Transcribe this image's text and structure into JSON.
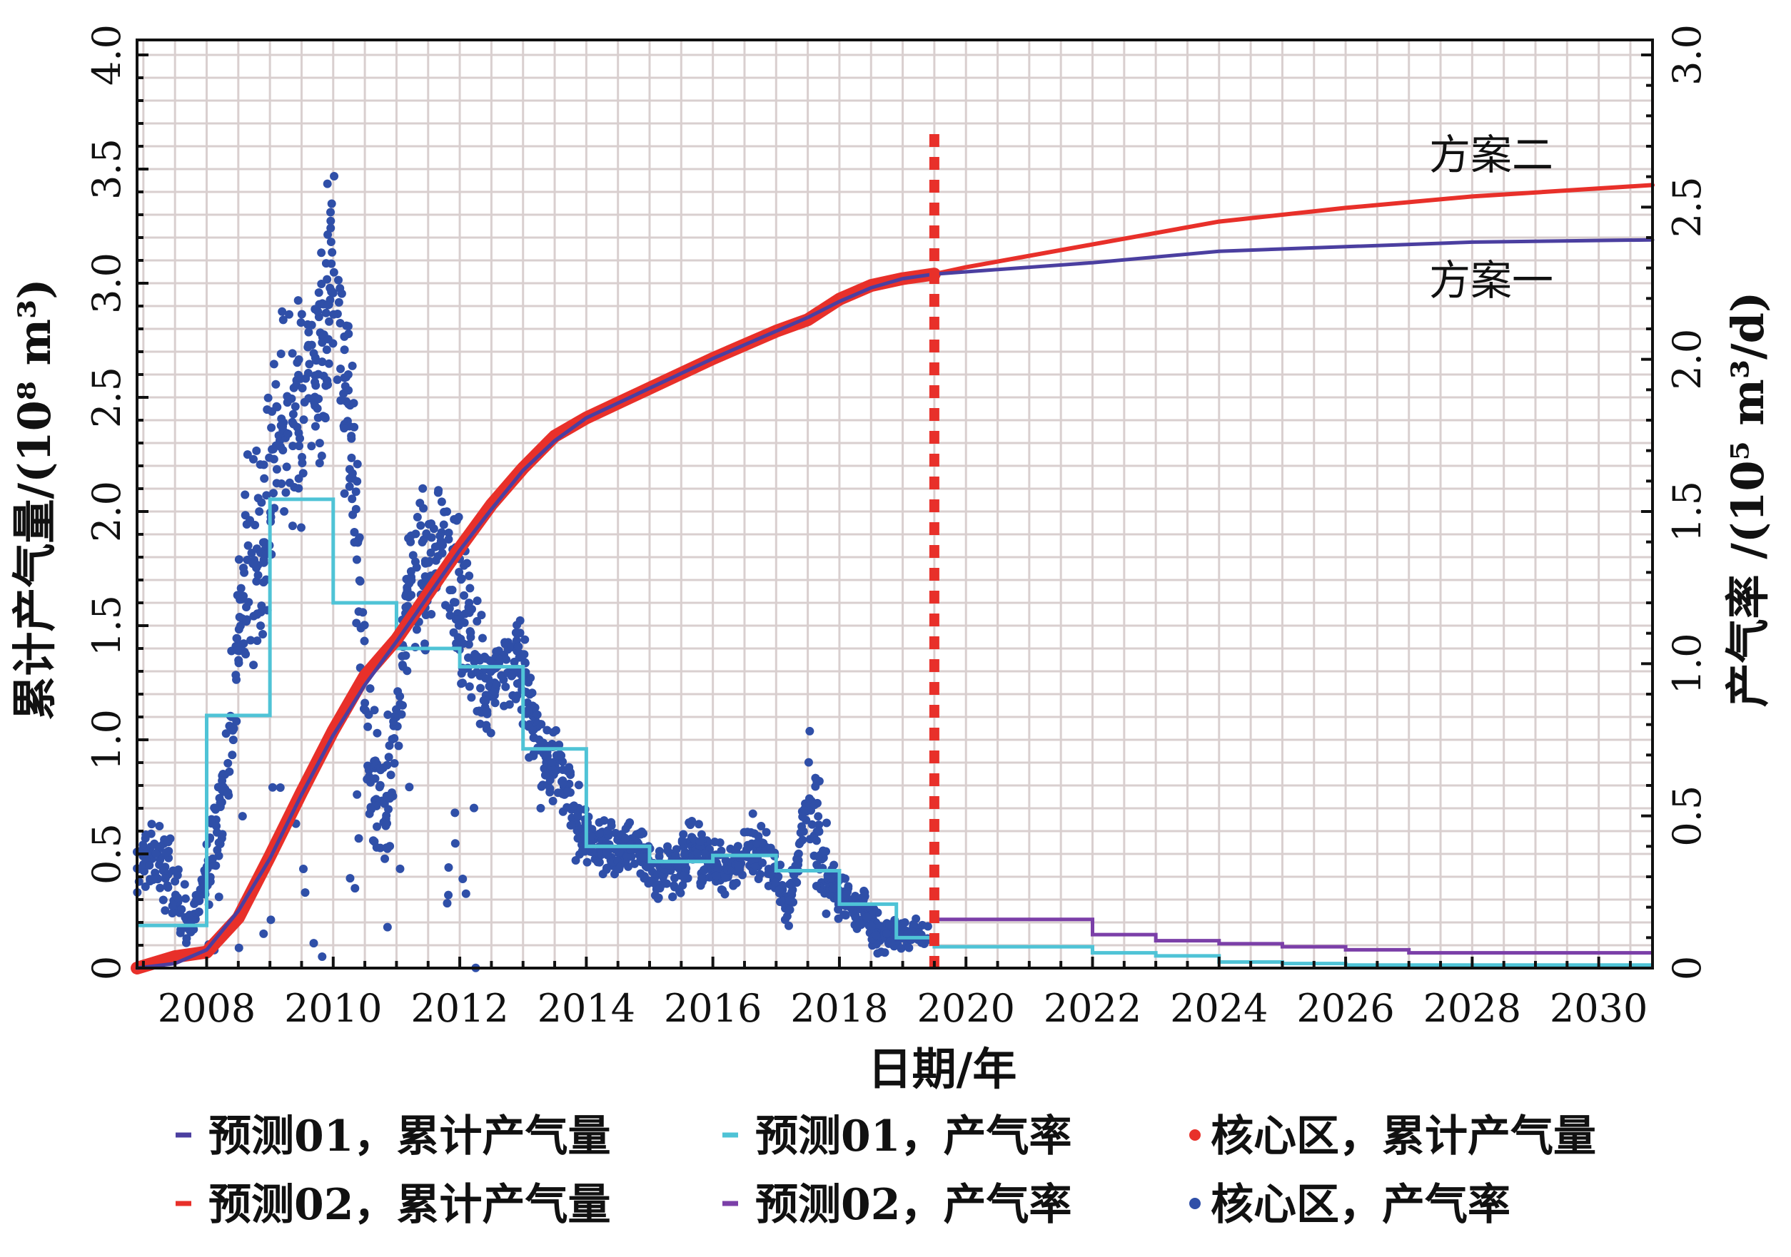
{
  "chart_data": {
    "type": "line",
    "xlabel": "日期/年",
    "ylabel_left": "累计产气量/(10⁸ m³)",
    "ylabel_right": "产气率 /(10⁵ m³/d)",
    "xlim": [
      2006.9,
      2030.85
    ],
    "ylim_left": [
      0,
      4.0
    ],
    "ylim_right": [
      0,
      3.0
    ],
    "x_ticks": [
      2008,
      2010,
      2012,
      2014,
      2016,
      2018,
      2020,
      2022,
      2024,
      2026,
      2028,
      2030
    ],
    "y_left_ticks": [
      "0",
      "0.5",
      "1.0",
      "1.5",
      "2.0",
      "2.5",
      "3.0",
      "3.5",
      "4.0"
    ],
    "y_right_ticks": [
      "0",
      "0.5",
      "1.0",
      "1.5",
      "2.0",
      "2.5",
      "3.0"
    ],
    "grid": true,
    "forecast_start_year": 2019.5,
    "annotations": [
      {
        "text": "方案二",
        "x": 2028.3,
        "y_left": 3.5
      },
      {
        "text": "方案一",
        "x": 2028.3,
        "y_left": 2.95
      }
    ],
    "series": [
      {
        "name": "预测01，累计产气量",
        "axis": "left",
        "kind": "line",
        "color": "#4b3fa0",
        "x": [
          2006.9,
          2007.5,
          2008,
          2008.5,
          2009,
          2009.5,
          2010,
          2010.5,
          2011,
          2011.5,
          2012,
          2012.5,
          2013,
          2013.5,
          2014,
          2015,
          2016,
          2017,
          2017.5,
          2018,
          2018.5,
          2019,
          2019.5,
          2020,
          2022,
          2024,
          2026,
          2028,
          2030.85
        ],
        "y": [
          0,
          0.02,
          0.08,
          0.25,
          0.48,
          0.76,
          1.02,
          1.24,
          1.43,
          1.63,
          1.83,
          2.01,
          2.18,
          2.31,
          2.41,
          2.54,
          2.67,
          2.79,
          2.85,
          2.92,
          2.98,
          3.02,
          3.04,
          3.05,
          3.09,
          3.14,
          3.16,
          3.18,
          3.19
        ]
      },
      {
        "name": "预测02，累计产气量",
        "axis": "left",
        "kind": "line",
        "color": "#e8302a",
        "x": [
          2019.5,
          2020,
          2022,
          2024,
          2026,
          2028,
          2030.85
        ],
        "y": [
          3.04,
          3.07,
          3.17,
          3.27,
          3.33,
          3.38,
          3.43
        ]
      },
      {
        "name": "预测01，产气率",
        "axis": "right",
        "kind": "step",
        "color": "#4fc3d6",
        "x": [
          2006.9,
          2008,
          2009,
          2010,
          2011,
          2012,
          2013,
          2014,
          2015,
          2016,
          2017,
          2018,
          2018.9,
          2019.5,
          2022,
          2023,
          2024,
          2025,
          2026,
          2030.85
        ],
        "y": [
          0.14,
          0.83,
          1.54,
          1.2,
          1.05,
          0.99,
          0.72,
          0.4,
          0.35,
          0.37,
          0.32,
          0.21,
          0.1,
          0.07,
          0.05,
          0.04,
          0.02,
          0.015,
          0.01,
          0.01
        ]
      },
      {
        "name": "预测02，产气率",
        "axis": "right",
        "kind": "step",
        "color": "#7b3fa8",
        "x": [
          2019.5,
          2022,
          2023,
          2024,
          2025,
          2026,
          2027,
          2030.85
        ],
        "y": [
          0.16,
          0.11,
          0.09,
          0.08,
          0.07,
          0.06,
          0.05,
          0.05
        ]
      },
      {
        "name": "核心区，累计产气量",
        "axis": "left",
        "kind": "thick-line",
        "color": "#e8302a",
        "x": [
          2006.9,
          2007.5,
          2008,
          2008.5,
          2009,
          2009.5,
          2010,
          2010.5,
          2011,
          2011.5,
          2012,
          2012.5,
          2013,
          2013.5,
          2014,
          2015,
          2016,
          2017,
          2017.5,
          2018,
          2018.5,
          2019,
          2019.5
        ],
        "y": [
          0,
          0.05,
          0.07,
          0.22,
          0.49,
          0.77,
          1.04,
          1.28,
          1.44,
          1.64,
          1.84,
          2.03,
          2.19,
          2.33,
          2.41,
          2.54,
          2.67,
          2.79,
          2.84,
          2.93,
          2.99,
          3.02,
          3.04
        ]
      },
      {
        "name": "核心区，产气率",
        "axis": "right",
        "kind": "scatter",
        "color": "#2f4fa8",
        "trend_x": [
          2006.9,
          2007.3,
          2007.7,
          2008.0,
          2008.3,
          2008.6,
          2008.9,
          2009.2,
          2009.5,
          2009.8,
          2010.0,
          2010.3,
          2010.6,
          2010.9,
          2011.2,
          2011.5,
          2011.8,
          2012.1,
          2012.4,
          2012.7,
          2013.0,
          2013.3,
          2013.6,
          2013.9,
          2014.2,
          2014.5,
          2014.8,
          2015.1,
          2015.4,
          2015.7,
          2016.0,
          2016.3,
          2016.6,
          2016.9,
          2017.2,
          2017.5,
          2017.8,
          2018.1,
          2018.4,
          2018.7,
          2019.0,
          2019.4
        ],
        "trend_y": [
          0.35,
          0.35,
          0.12,
          0.3,
          0.6,
          1.3,
          1.4,
          1.9,
          1.8,
          2.0,
          2.3,
          1.7,
          0.6,
          0.55,
          1.25,
          1.3,
          1.4,
          1.15,
          0.9,
          1.0,
          0.95,
          0.7,
          0.65,
          0.45,
          0.4,
          0.38,
          0.42,
          0.3,
          0.33,
          0.38,
          0.35,
          0.3,
          0.4,
          0.35,
          0.2,
          0.55,
          0.3,
          0.22,
          0.18,
          0.1,
          0.12,
          0.1
        ],
        "spread": [
          0.15,
          0.15,
          0.05,
          0.15,
          0.3,
          0.4,
          0.4,
          0.45,
          0.4,
          0.45,
          0.45,
          0.35,
          0.3,
          0.25,
          0.3,
          0.25,
          0.3,
          0.25,
          0.2,
          0.2,
          0.2,
          0.15,
          0.15,
          0.1,
          0.1,
          0.1,
          0.1,
          0.1,
          0.12,
          0.12,
          0.1,
          0.1,
          0.12,
          0.1,
          0.08,
          0.3,
          0.1,
          0.08,
          0.08,
          0.06,
          0.06,
          0.05
        ]
      }
    ],
    "legend": {
      "position": "bottom",
      "items": [
        {
          "label": "预测01，累计产气量",
          "marker": "dash",
          "color": "#4b3fa0"
        },
        {
          "label": "预测01，产气率",
          "marker": "dash",
          "color": "#4fc3d6"
        },
        {
          "label": "核心区，累计产气量",
          "marker": "dot",
          "color": "#e8302a"
        },
        {
          "label": "预测02，累计产气量",
          "marker": "dash",
          "color": "#e8302a"
        },
        {
          "label": "预测02，产气率",
          "marker": "dash",
          "color": "#7b3fa8"
        },
        {
          "label": "核心区，产气率",
          "marker": "dot",
          "color": "#2f4fa8"
        }
      ]
    }
  }
}
